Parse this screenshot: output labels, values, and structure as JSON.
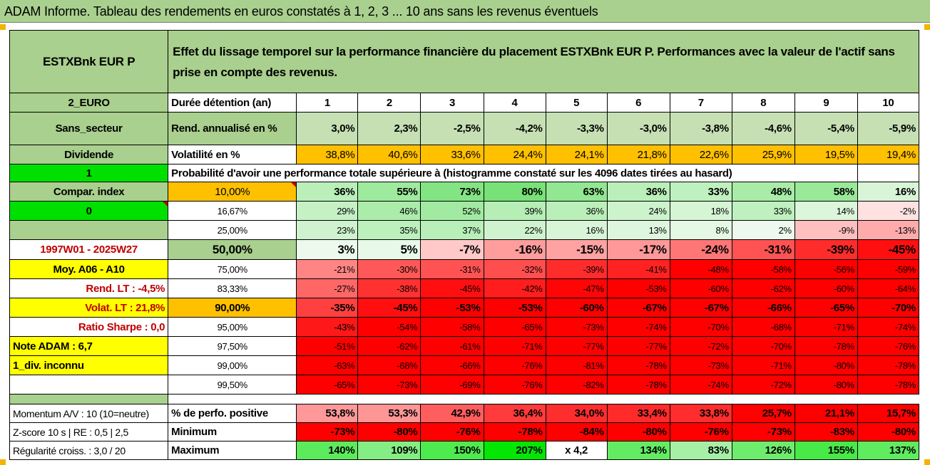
{
  "title": "ADAM Informe. Tableau des rendements en euros constatés à 1, 2, 3 ... 10 ans sans les revenus éventuels",
  "header": {
    "fund": "ESTXBnk EUR P",
    "description": "Effet du lissage temporel sur la performance financière du placement ESTXBnk EUR P. Performances avec la valeur de l'actif sans prise en compte des revenus."
  },
  "rows": {
    "duree": {
      "side": "2_EURO",
      "label": "Durée détention (an)",
      "values": [
        "1",
        "2",
        "3",
        "4",
        "5",
        "6",
        "7",
        "8",
        "9",
        "10"
      ]
    },
    "rend": {
      "side": "Sans_secteur",
      "label": "Rend. annualisé en %",
      "values": [
        "3,0%",
        "2,3%",
        "-2,5%",
        "-4,2%",
        "-3,3%",
        "-3,0%",
        "-3,8%",
        "-4,6%",
        "-5,4%",
        "-5,9%"
      ]
    },
    "vol": {
      "side": "Dividende",
      "label": "Volatilité en %",
      "values": [
        "38,8%",
        "40,6%",
        "33,6%",
        "24,4%",
        "24,1%",
        "21,8%",
        "22,6%",
        "25,9%",
        "19,5%",
        "19,4%"
      ]
    },
    "proba": {
      "side": "1",
      "label": "Probabilité d'avoir une performance totale supérieure à (histogramme constaté sur les 4096 dates tirées au hasard)"
    }
  },
  "quantiles": [
    {
      "side": "Compar. index",
      "q": "10,00%",
      "values": [
        "36%",
        "55%",
        "73%",
        "80%",
        "63%",
        "36%",
        "33%",
        "48%",
        "58%",
        "16%"
      ]
    },
    {
      "side": "0",
      "q": "16,67%",
      "values": [
        "29%",
        "46%",
        "52%",
        "39%",
        "36%",
        "24%",
        "18%",
        "33%",
        "14%",
        "-2%"
      ]
    },
    {
      "side": "",
      "q": "25,00%",
      "values": [
        "23%",
        "35%",
        "37%",
        "22%",
        "16%",
        "13%",
        "8%",
        "2%",
        "-9%",
        "-13%"
      ]
    },
    {
      "side": "1997W01 - 2025W27",
      "q": "50,00%",
      "values": [
        "3%",
        "5%",
        "-7%",
        "-16%",
        "-15%",
        "-17%",
        "-24%",
        "-31%",
        "-39%",
        "-45%"
      ]
    },
    {
      "side": "Moy. A06 - A10",
      "q": "75,00%",
      "values": [
        "-21%",
        "-30%",
        "-31%",
        "-32%",
        "-39%",
        "-41%",
        "-48%",
        "-58%",
        "-56%",
        "-59%"
      ]
    },
    {
      "side": "Rend. LT :    -4,5%",
      "q": "83,33%",
      "values": [
        "-27%",
        "-38%",
        "-45%",
        "-42%",
        "-47%",
        "-53%",
        "-60%",
        "-62%",
        "-60%",
        "-64%"
      ]
    },
    {
      "side": "Volat. LT :   21,8%",
      "q": "90,00%",
      "values": [
        "-35%",
        "-45%",
        "-53%",
        "-53%",
        "-60%",
        "-67%",
        "-67%",
        "-66%",
        "-65%",
        "-70%"
      ]
    },
    {
      "side": "Ratio Sharpe :    0,0",
      "q": "95,00%",
      "values": [
        "-43%",
        "-54%",
        "-58%",
        "-65%",
        "-73%",
        "-74%",
        "-70%",
        "-68%",
        "-71%",
        "-74%"
      ]
    },
    {
      "side": "Note ADAM : 6,7",
      "q": "97,50%",
      "values": [
        "-51%",
        "-62%",
        "-61%",
        "-71%",
        "-77%",
        "-77%",
        "-72%",
        "-70%",
        "-78%",
        "-76%"
      ]
    },
    {
      "side": "1_div. inconnu",
      "q": "99,00%",
      "values": [
        "-63%",
        "-68%",
        "-66%",
        "-76%",
        "-81%",
        "-78%",
        "-73%",
        "-71%",
        "-80%",
        "-78%"
      ]
    },
    {
      "side": "",
      "q": "99,50%",
      "values": [
        "-65%",
        "-73%",
        "-69%",
        "-76%",
        "-82%",
        "-78%",
        "-74%",
        "-72%",
        "-80%",
        "-78%"
      ]
    }
  ],
  "bottom": [
    {
      "side": "Momentum A/V : 10 (10=neutre)",
      "label": "% de perfo. positive",
      "values": [
        "53,8%",
        "53,3%",
        "42,9%",
        "36,4%",
        "34,0%",
        "33,4%",
        "33,8%",
        "25,7%",
        "21,1%",
        "15,7%"
      ]
    },
    {
      "side": "Z-score 10 s | RE : 0,5 | 2,5",
      "label": "Minimum",
      "values": [
        "-73%",
        "-80%",
        "-76%",
        "-78%",
        "-84%",
        "-80%",
        "-76%",
        "-73%",
        "-83%",
        "-80%"
      ]
    },
    {
      "side": "Régularité croiss. : 3,0 / 20",
      "label": "Maximum",
      "values": [
        "140%",
        "109%",
        "150%",
        "207%",
        "x 4,2",
        "134%",
        "83%",
        "126%",
        "155%",
        "137%"
      ]
    }
  ],
  "colors": {
    "green_header": "#a9d08e",
    "orange": "#ffc000",
    "yellow": "#ffff00",
    "lime": "#00e000",
    "red": "#ff0000"
  }
}
